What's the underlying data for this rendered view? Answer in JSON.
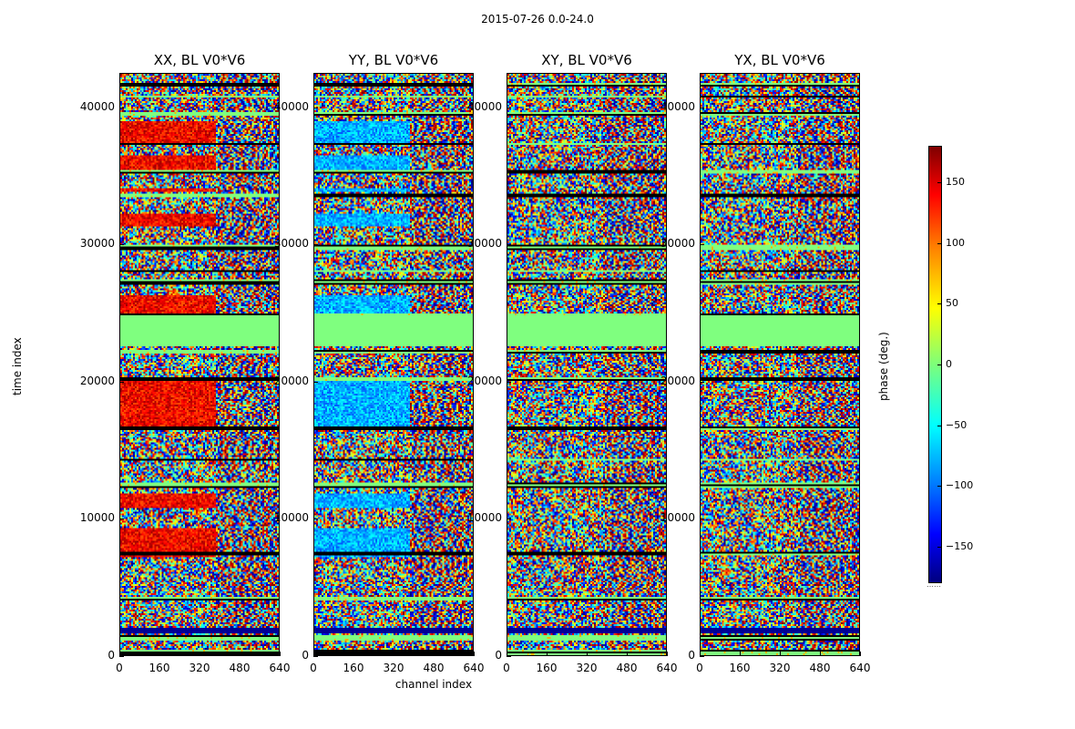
{
  "chart_data": {
    "type": "heatmap",
    "suptitle": "2015-07-26 0.0-24.0",
    "xlabel": "channel index",
    "ylabel": "time index",
    "xlim": [
      0,
      640
    ],
    "ylim": [
      0,
      42500
    ],
    "xticks": [
      0,
      160,
      320,
      480,
      640
    ],
    "yticks": [
      0,
      10000,
      20000,
      30000,
      40000
    ],
    "value_range": [
      -180,
      180
    ],
    "colormap": "jet",
    "panels": [
      {
        "title": "XX, BL V0*V6",
        "bias": "red"
      },
      {
        "title": "YY, BL V0*V6",
        "bias": "blue"
      },
      {
        "title": "XY, BL V0*V6",
        "bias": "none"
      },
      {
        "title": "YX, BL V0*V6",
        "bias": "none"
      }
    ],
    "colorbar": {
      "label": "phase (deg.)",
      "ticks": [
        -150,
        -100,
        -50,
        0,
        50,
        100,
        150
      ],
      "range": [
        -180,
        180
      ]
    }
  }
}
